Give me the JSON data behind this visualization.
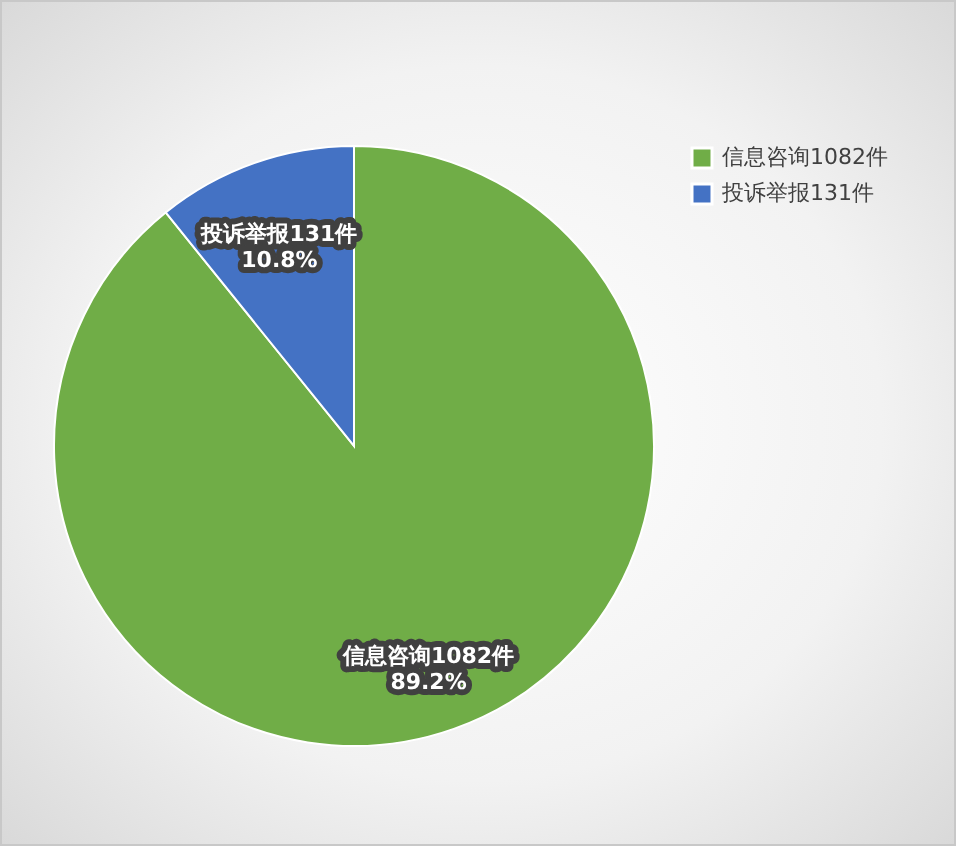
{
  "chart_data": {
    "type": "pie",
    "categories": [
      "信息咨询1082件",
      "投诉举报131件"
    ],
    "values": [
      89.2,
      10.8
    ],
    "colors": [
      "#70ad47",
      "#4472c4"
    ],
    "value_labels": [
      "89.2%",
      "10.8%"
    ],
    "legend": "right"
  }
}
